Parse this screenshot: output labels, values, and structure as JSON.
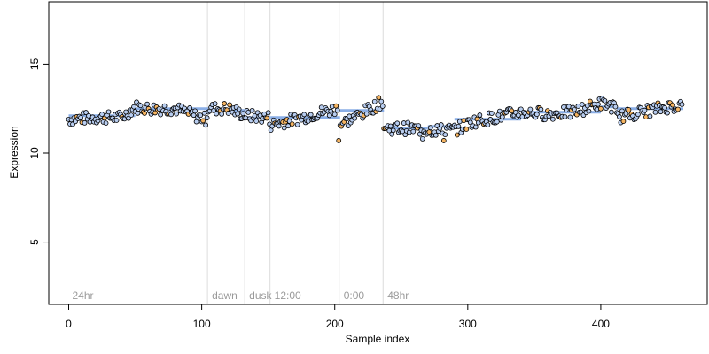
{
  "chart_data": {
    "type": "scatter",
    "xlabel": "Sample index",
    "ylabel": "Expression",
    "xlim": [
      -15,
      480
    ],
    "ylim": [
      1.5,
      18.5
    ],
    "x_ticks": [
      0,
      100,
      200,
      300,
      400
    ],
    "y_ticks": [
      5,
      10,
      15
    ],
    "regions": [
      {
        "label": "24hr",
        "start": 0
      },
      {
        "label": "dawn",
        "start": 105
      },
      {
        "label": "dusk",
        "start": 133
      },
      {
        "label": "12:00",
        "start": 152
      },
      {
        "label": "0:00",
        "start": 204
      },
      {
        "label": "48hr",
        "start": 237
      }
    ],
    "colors": {
      "point_face": "#b8cdf0",
      "highlight_face": "#f5b462",
      "segment_line": "#8aaee6",
      "region_divider": "#dcdcdc"
    },
    "approx_series": {
      "n_samples": 462,
      "anchors": [
        [
          0,
          11.9
        ],
        [
          20,
          12.0
        ],
        [
          40,
          12.0
        ],
        [
          50,
          12.6
        ],
        [
          60,
          12.5
        ],
        [
          80,
          12.5
        ],
        [
          95,
          12.1
        ],
        [
          103,
          11.9
        ],
        [
          105,
          12.5
        ],
        [
          120,
          12.5
        ],
        [
          133,
          12.1
        ],
        [
          150,
          12.0
        ],
        [
          152,
          11.6
        ],
        [
          170,
          11.9
        ],
        [
          190,
          12.3
        ],
        [
          203,
          12.5
        ],
        [
          204,
          11.6
        ],
        [
          220,
          12.2
        ],
        [
          236,
          12.9
        ],
        [
          237,
          11.4
        ],
        [
          250,
          11.4
        ],
        [
          270,
          11.3
        ],
        [
          290,
          11.3
        ],
        [
          305,
          11.8
        ],
        [
          320,
          12.0
        ],
        [
          340,
          12.3
        ],
        [
          360,
          12.2
        ],
        [
          380,
          12.3
        ],
        [
          400,
          12.8
        ],
        [
          410,
          12.6
        ],
        [
          412,
          12.0
        ],
        [
          430,
          12.3
        ],
        [
          450,
          12.6
        ],
        [
          462,
          12.7
        ]
      ],
      "segments": [
        [
          0,
          50,
          12.1
        ],
        [
          50,
          105,
          12.5
        ],
        [
          105,
          133,
          12.4
        ],
        [
          133,
          152,
          12.0
        ],
        [
          152,
          204,
          12.0
        ],
        [
          204,
          237,
          12.4
        ],
        [
          237,
          270,
          11.4
        ],
        [
          270,
          290,
          11.5
        ],
        [
          290,
          340,
          11.9
        ],
        [
          340,
          400,
          12.3
        ],
        [
          400,
          412,
          12.6
        ],
        [
          412,
          462,
          12.5
        ]
      ],
      "outliers": [
        [
          203,
          10.7
        ],
        [
          266,
          10.8
        ],
        [
          282,
          10.7
        ]
      ]
    }
  }
}
